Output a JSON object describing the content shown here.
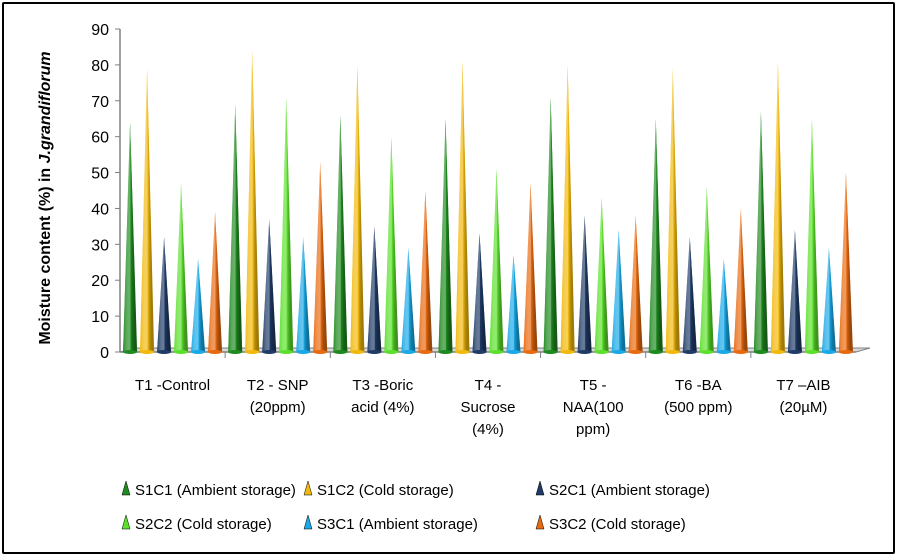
{
  "chart_data": {
    "type": "bar",
    "style": "3d-cone",
    "ylabel": "Moisture content (%)  in J.grandiflorum",
    "ylabel_parts": [
      "Moisture content (%)  in ",
      "J.grandiflorum"
    ],
    "xlabel": "",
    "ylim": [
      0,
      90
    ],
    "yticks": [
      0,
      10,
      20,
      30,
      40,
      50,
      60,
      70,
      80,
      90
    ],
    "grid": false,
    "legend_position": "bottom",
    "categories": [
      [
        "T1 -Control"
      ],
      [
        "T2 - SNP",
        "(20ppm)"
      ],
      [
        "T3 -Boric",
        "acid (4%)"
      ],
      [
        "T4 -",
        "Sucrose",
        "(4%)"
      ],
      [
        "T5 -",
        "NAA(100",
        "ppm)"
      ],
      [
        "T6 -BA",
        "(500 ppm)"
      ],
      [
        "T7 –AIB",
        "(20µM)"
      ]
    ],
    "series": [
      {
        "name": "S1C1 (Ambient storage)",
        "color": "#1f8a1f",
        "values": [
          64,
          69,
          66,
          65,
          71,
          65,
          67
        ]
      },
      {
        "name": "S1C2 (Cold storage)",
        "color": "#f2b90c",
        "values": [
          79,
          84,
          80,
          81,
          80,
          79,
          81
        ]
      },
      {
        "name": "S2C1 (Ambient storage)",
        "color": "#1f3b66",
        "values": [
          32,
          37,
          35,
          33,
          38,
          32,
          34
        ]
      },
      {
        "name": "S2C2 (Cold storage)",
        "color": "#5ce02c",
        "values": [
          47,
          71,
          60,
          51,
          43,
          46,
          65
        ]
      },
      {
        "name": "S3C1 (Ambient storage)",
        "color": "#19a9e6",
        "values": [
          26,
          32,
          29,
          27,
          34,
          26,
          29
        ]
      },
      {
        "name": "S3C2 (Cold storage)",
        "color": "#e86a10",
        "values": [
          39,
          53,
          45,
          47,
          38,
          40,
          50
        ]
      }
    ]
  }
}
